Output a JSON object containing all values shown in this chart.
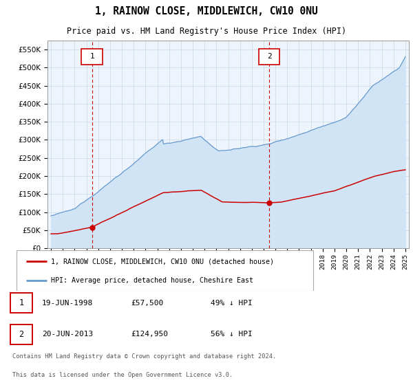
{
  "title": "1, RAINOW CLOSE, MIDDLEWICH, CW10 0NU",
  "subtitle": "Price paid vs. HM Land Registry's House Price Index (HPI)",
  "legend_line1": "1, RAINOW CLOSE, MIDDLEWICH, CW10 0NU (detached house)",
  "legend_line2": "HPI: Average price, detached house, Cheshire East",
  "annotation1_date": "19-JUN-1998",
  "annotation1_price": "£57,500",
  "annotation1_pct": "49% ↓ HPI",
  "annotation2_date": "20-JUN-2013",
  "annotation2_price": "£124,950",
  "annotation2_pct": "56% ↓ HPI",
  "footnote1": "Contains HM Land Registry data © Crown copyright and database right 2024.",
  "footnote2": "This data is licensed under the Open Government Licence v3.0.",
  "red_color": "#cc0000",
  "blue_color": "#6699cc",
  "blue_fill": "#d0e4f5",
  "plot_bg": "#eef4fc",
  "grid_color": "#c8d8e8",
  "box_color": "#cc0000",
  "ylim_min": 0,
  "ylim_max": 575000,
  "sale1_year": 1998.47,
  "sale1_price": 57500,
  "sale2_year": 2013.47,
  "sale2_price": 124950,
  "vline1_year": 1998.47,
  "vline2_year": 2013.47,
  "xmin": 1994.7,
  "xmax": 2025.3
}
